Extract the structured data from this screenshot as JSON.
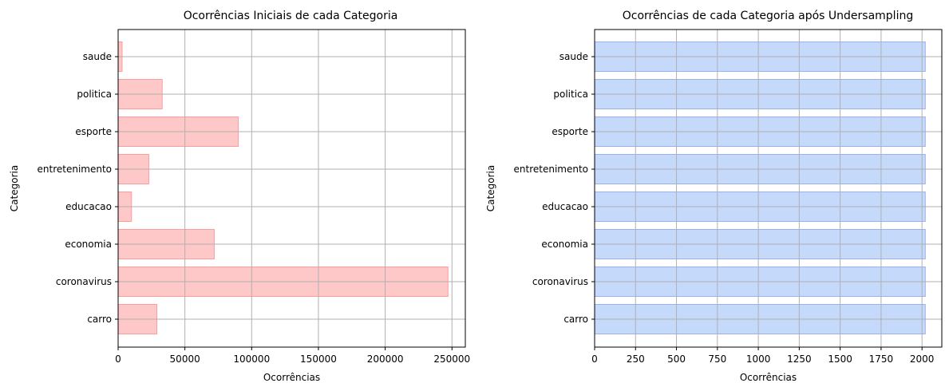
{
  "chart_data": [
    {
      "type": "bar",
      "orientation": "horizontal",
      "title": "Ocorrências Iniciais de cada Categoria",
      "xlabel": "Ocorrências",
      "ylabel": "Categoria",
      "categories": [
        "carro",
        "coronavirus",
        "economia",
        "educacao",
        "entretenimento",
        "esporte",
        "politica",
        "saude"
      ],
      "values": [
        29000,
        247000,
        72000,
        10000,
        23000,
        90000,
        33000,
        3000
      ],
      "xlim": [
        0,
        260000
      ],
      "xticks": [
        0,
        50000,
        100000,
        150000,
        200000,
        250000
      ],
      "grid": true,
      "colors": {
        "fill": "#ffc8c8",
        "edge": "#ff9c9c"
      }
    },
    {
      "type": "bar",
      "orientation": "horizontal",
      "title": "Ocorrências de cada Categoria após Undersampling",
      "xlabel": "Ocorrências",
      "ylabel": "Categoria",
      "categories": [
        "carro",
        "coronavirus",
        "economia",
        "educacao",
        "entretenimento",
        "esporte",
        "politica",
        "saude"
      ],
      "values": [
        2020,
        2020,
        2020,
        2020,
        2020,
        2020,
        2020,
        2020
      ],
      "xlim": [
        0,
        2121
      ],
      "xticks": [
        0,
        250,
        500,
        750,
        1000,
        1250,
        1500,
        1750,
        2000
      ],
      "grid": true,
      "colors": {
        "fill": "#c5d9fb",
        "edge": "#9bb0f0"
      }
    }
  ]
}
